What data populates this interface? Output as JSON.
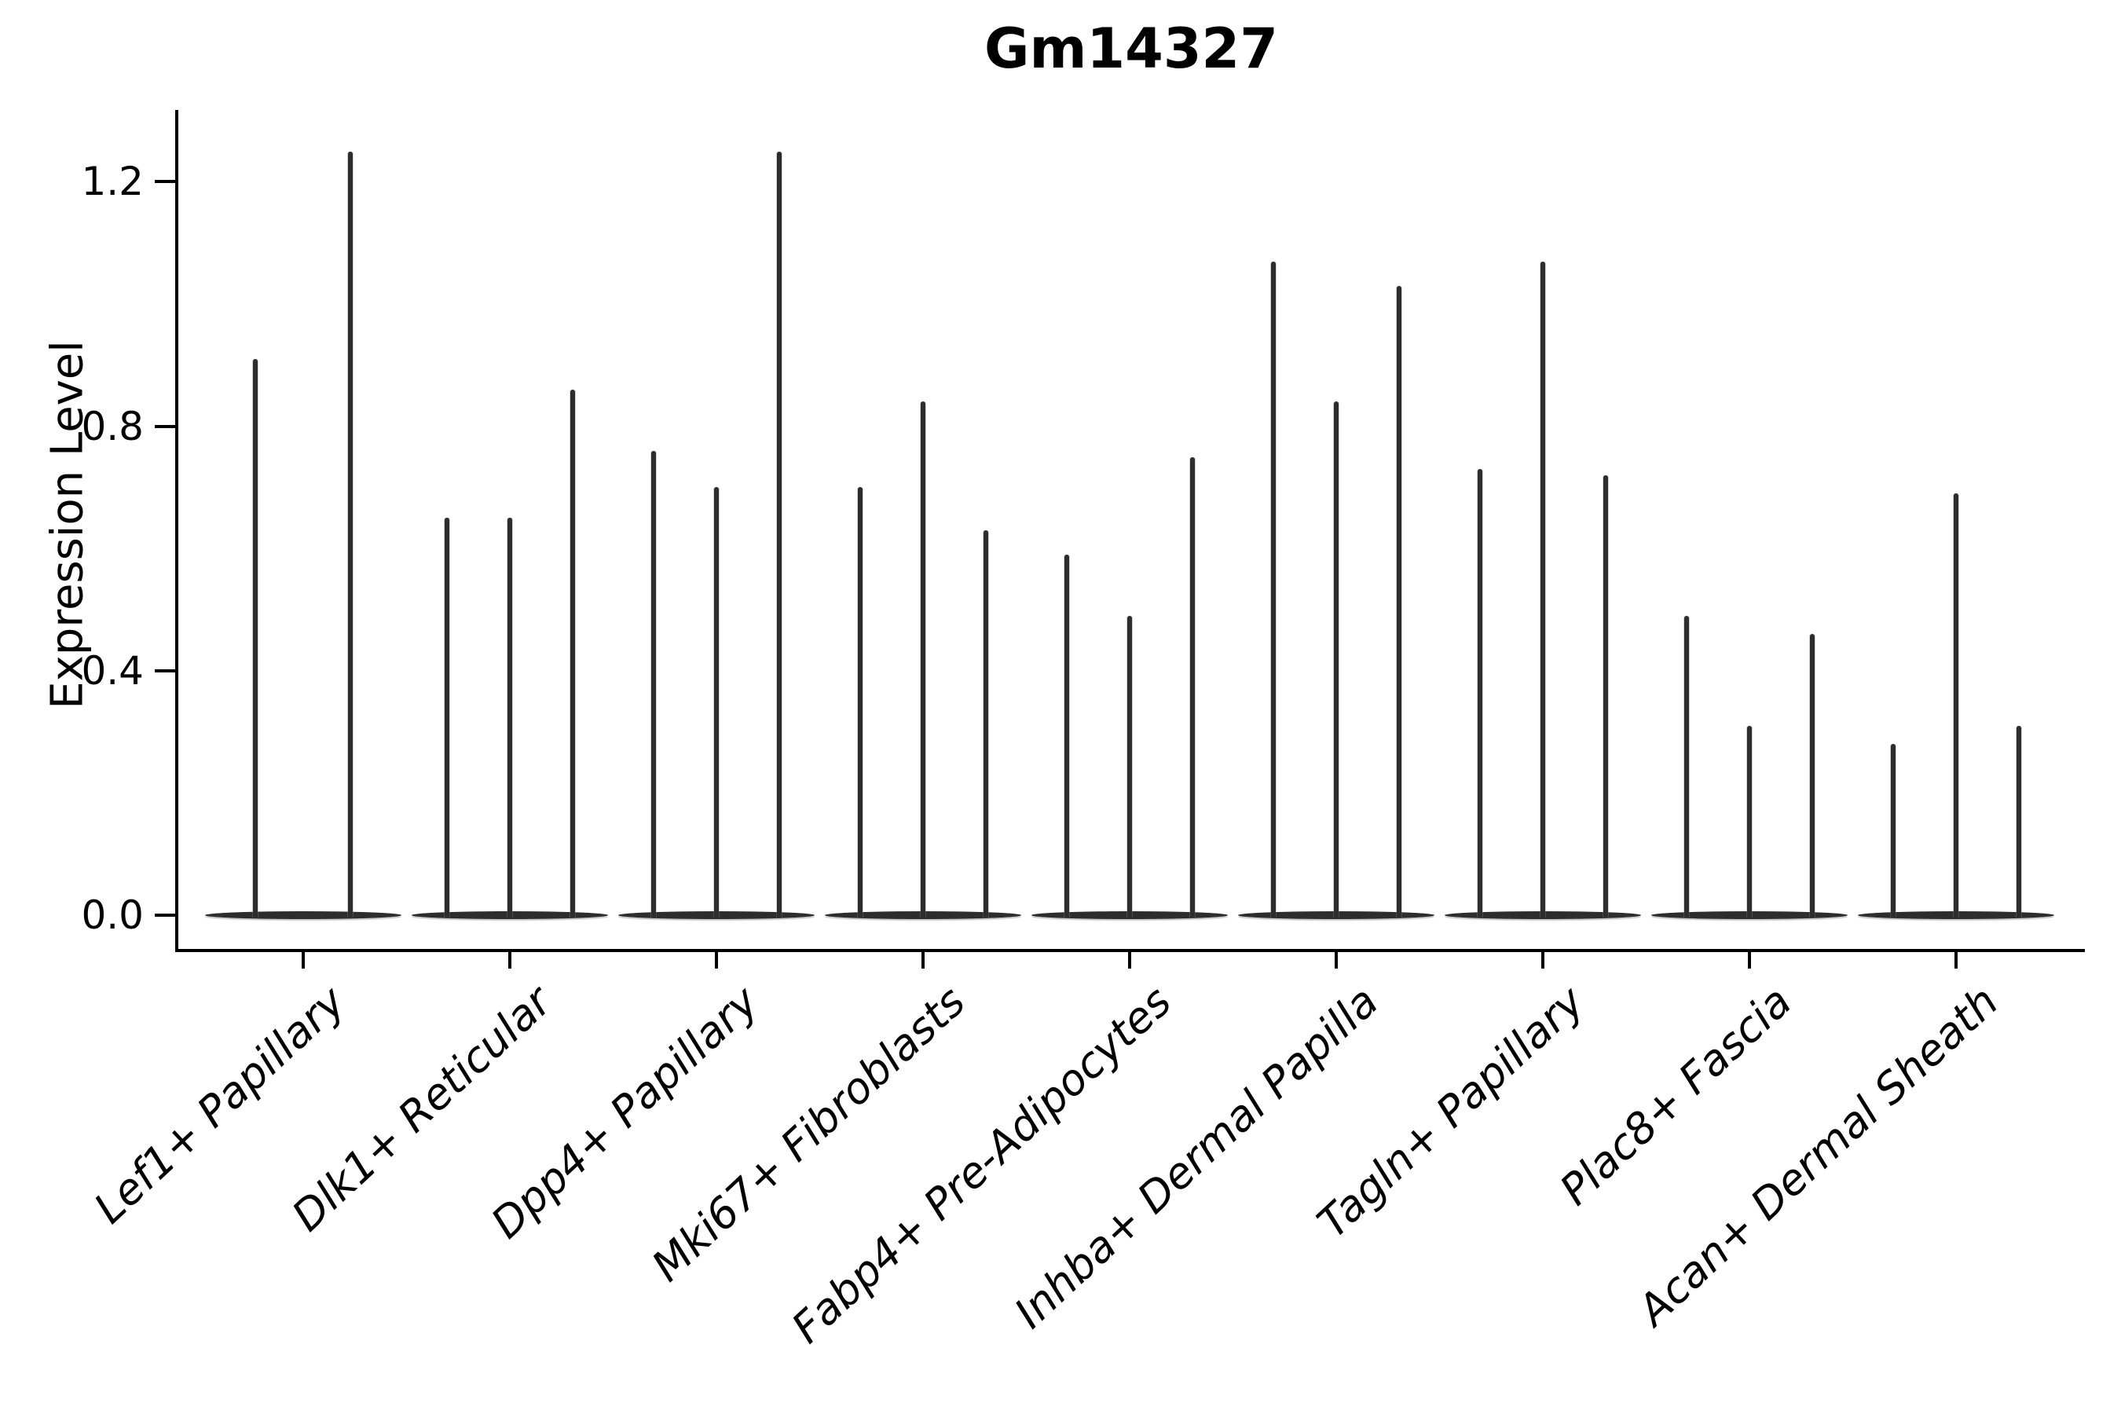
{
  "figure": {
    "title": "Gm14327",
    "ylabel": "Expression Level"
  },
  "chart_data": {
    "type": "violin",
    "title": "Gm14327",
    "xlabel": "",
    "ylabel": "Expression Level",
    "grid": false,
    "legend": null,
    "ylim": [
      -0.06,
      1.32
    ],
    "yticks": [
      {
        "value": 0.0,
        "label": "0.0"
      },
      {
        "value": 0.4,
        "label": "0.4"
      },
      {
        "value": 0.8,
        "label": "0.8"
      },
      {
        "value": 1.2,
        "label": "1.2"
      }
    ],
    "categories": [
      "Lef1+ Papillary",
      "Dlk1+ Reticular",
      "Dpp4+ Papillary",
      "Mki67+ Fibroblasts",
      "Fabp4+ Pre-Adipocytes",
      "Inhba+ Dermal Papilla",
      "Tagln+ Papillary",
      "Plac8+ Fascia",
      "Acan+ Dermal Sheath"
    ],
    "series": [
      {
        "category": "Lef1+ Papillary",
        "violin_max": [
          0.91,
          1.25
        ]
      },
      {
        "category": "Dlk1+ Reticular",
        "violin_max": [
          0.65,
          0.65,
          0.86
        ]
      },
      {
        "category": "Dpp4+ Papillary",
        "violin_max": [
          0.76,
          0.7,
          1.25
        ]
      },
      {
        "category": "Mki67+ Fibroblasts",
        "violin_max": [
          0.7,
          0.84,
          0.63
        ]
      },
      {
        "category": "Fabp4+ Pre-Adipocytes",
        "violin_max": [
          0.59,
          0.49,
          0.75
        ]
      },
      {
        "category": "Inhba+ Dermal Papilla",
        "violin_max": [
          1.07,
          0.84,
          1.03
        ]
      },
      {
        "category": "Tagln+ Papillary",
        "violin_max": [
          0.73,
          1.07,
          0.72
        ]
      },
      {
        "category": "Plac8+ Fascia",
        "violin_max": [
          0.49,
          0.31,
          0.46
        ]
      },
      {
        "category": "Acan+ Dermal Sheath",
        "violin_max": [
          0.28,
          0.69,
          0.31
        ]
      }
    ],
    "baseline_value": 0.0,
    "violin_color": "#2d2d2d",
    "axis_color": "#000000"
  }
}
